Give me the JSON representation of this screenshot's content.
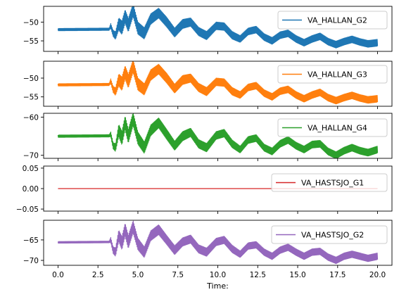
{
  "chart_data": {
    "type": "line",
    "layout": "stacked-subplots",
    "shared_x": true,
    "xlabel": "Time:",
    "xlim": [
      -0.9,
      20.9
    ],
    "xticks": [
      0.0,
      2.5,
      5.0,
      7.5,
      10.0,
      12.5,
      15.0,
      17.5,
      20.0
    ],
    "xtick_labels": [
      "0.0",
      "2.5",
      "5.0",
      "7.5",
      "10.0",
      "12.5",
      "15.0",
      "17.5",
      "20.0"
    ],
    "grid": false,
    "subplots": [
      {
        "series": [
          {
            "name": "VA_HALLAN_G2",
            "color": "#1f77b4",
            "x": [
              0.0,
              3.2,
              3.3,
              3.45,
              3.6,
              3.8,
              4.0,
              4.2,
              4.4,
              4.7,
              5.0,
              5.4,
              5.8,
              6.3,
              6.8,
              7.3,
              7.8,
              8.3,
              8.8,
              9.3,
              9.9,
              10.4,
              10.9,
              11.4,
              11.9,
              12.4,
              12.9,
              13.4,
              13.9,
              14.4,
              14.9,
              15.4,
              15.9,
              16.4,
              16.9,
              17.4,
              17.9,
              18.4,
              18.9,
              19.4,
              20.0
            ],
            "y": [
              -52.0,
              -51.9,
              -51.0,
              -53.0,
              -53.6,
              -50.5,
              -51.5,
              -48.5,
              -50.8,
              -46.8,
              -51.6,
              -53.0,
              -49.2,
              -47.6,
              -50.0,
              -52.8,
              -50.5,
              -50.0,
              -52.5,
              -53.6,
              -51.0,
              -51.2,
              -53.5,
              -54.5,
              -52.5,
              -52.0,
              -54.0,
              -55.0,
              -53.5,
              -53.0,
              -54.5,
              -55.5,
              -54.5,
              -53.8,
              -55.2,
              -56.0,
              -55.2,
              -54.6,
              -55.3,
              -55.8,
              -55.5
            ],
            "osc": [
              0.3,
              0.3,
              0.6,
              0.8,
              1.0,
              1.6,
              1.8,
              1.8,
              1.8,
              1.7,
              1.6,
              1.5,
              1.4,
              1.3,
              1.3,
              1.2,
              1.2,
              1.1,
              1.1,
              1.1,
              1.0,
              1.0,
              1.0,
              0.9,
              0.9,
              0.9,
              0.9,
              0.9,
              0.9,
              0.9,
              0.9,
              0.9,
              0.9,
              0.9,
              0.9,
              0.9,
              0.9,
              0.9,
              0.9,
              0.9,
              0.9
            ]
          }
        ],
        "ylim": [
          -57.8,
          -45.8
        ],
        "yticks": [
          -50,
          -55
        ],
        "ytick_labels": [
          "−50",
          "−55"
        ],
        "legend": "upper right"
      },
      {
        "series": [
          {
            "name": "VA_HALLAN_G3",
            "color": "#ff7f0e",
            "x": [
              0.0,
              3.2,
              3.3,
              3.45,
              3.6,
              3.8,
              4.0,
              4.2,
              4.4,
              4.7,
              5.0,
              5.4,
              5.8,
              6.3,
              6.8,
              7.3,
              7.8,
              8.3,
              8.8,
              9.3,
              9.9,
              10.4,
              10.9,
              11.4,
              11.9,
              12.4,
              12.9,
              13.4,
              13.9,
              14.4,
              14.9,
              15.4,
              15.9,
              16.4,
              16.9,
              17.4,
              17.9,
              18.4,
              18.9,
              19.4,
              20.0
            ],
            "y": [
              -51.8,
              -51.7,
              -50.8,
              -53.0,
              -53.6,
              -50.5,
              -51.5,
              -48.5,
              -50.8,
              -46.8,
              -51.6,
              -53.0,
              -49.2,
              -47.6,
              -50.0,
              -52.8,
              -50.5,
              -50.0,
              -52.5,
              -53.6,
              -51.0,
              -51.2,
              -53.5,
              -54.5,
              -52.5,
              -52.0,
              -54.0,
              -55.0,
              -53.5,
              -53.0,
              -54.5,
              -55.5,
              -54.5,
              -53.8,
              -55.2,
              -56.0,
              -55.2,
              -54.6,
              -55.3,
              -55.8,
              -55.5
            ],
            "osc": [
              0.3,
              0.3,
              0.6,
              0.8,
              1.0,
              1.6,
              1.8,
              1.8,
              1.8,
              1.7,
              1.6,
              1.5,
              1.4,
              1.3,
              1.3,
              1.2,
              1.2,
              1.1,
              1.1,
              1.1,
              1.0,
              1.0,
              1.0,
              0.9,
              0.9,
              0.9,
              0.9,
              0.9,
              0.9,
              0.9,
              0.9,
              0.9,
              0.9,
              0.9,
              0.9,
              0.9,
              0.9,
              0.9,
              0.9,
              0.9,
              0.9
            ]
          }
        ],
        "ylim": [
          -57.5,
          -45.5
        ],
        "yticks": [
          -50,
          -55
        ],
        "ytick_labels": [
          "−50",
          "−55"
        ],
        "legend": "upper right"
      },
      {
        "series": [
          {
            "name": "VA_HALLAN_G4",
            "color": "#2ca02c",
            "x": [
              0.0,
              3.2,
              3.3,
              3.45,
              3.6,
              3.8,
              4.0,
              4.2,
              4.4,
              4.7,
              5.0,
              5.4,
              5.8,
              6.3,
              6.8,
              7.3,
              7.8,
              8.3,
              8.8,
              9.3,
              9.9,
              10.4,
              10.9,
              11.4,
              11.9,
              12.4,
              12.9,
              13.4,
              13.9,
              14.4,
              14.9,
              15.4,
              15.9,
              16.4,
              16.9,
              17.4,
              17.9,
              18.4,
              18.9,
              19.4,
              20.0
            ],
            "y": [
              -65.0,
              -64.9,
              -64.5,
              -67.5,
              -68.0,
              -63.5,
              -65.5,
              -61.5,
              -65.0,
              -60.5,
              -65.5,
              -68.0,
              -63.5,
              -61.5,
              -64.5,
              -67.5,
              -65.0,
              -64.0,
              -67.0,
              -68.0,
              -64.8,
              -64.2,
              -67.0,
              -68.5,
              -66.0,
              -65.5,
              -68.0,
              -69.0,
              -67.0,
              -66.0,
              -67.5,
              -68.5,
              -67.2,
              -67.0,
              -69.0,
              -70.0,
              -68.8,
              -68.0,
              -68.8,
              -69.3,
              -68.5
            ],
            "osc": [
              0.3,
              0.3,
              0.6,
              0.8,
              1.0,
              1.6,
              1.8,
              1.8,
              1.8,
              1.7,
              1.6,
              1.5,
              1.4,
              1.3,
              1.3,
              1.2,
              1.2,
              1.1,
              1.1,
              1.1,
              1.0,
              1.0,
              1.0,
              0.9,
              0.9,
              0.9,
              0.9,
              0.9,
              0.9,
              0.9,
              0.9,
              0.9,
              0.9,
              0.9,
              0.9,
              0.9,
              0.9,
              0.9,
              0.9,
              0.9,
              0.9
            ]
          }
        ],
        "ylim": [
          -70.8,
          -59.0
        ],
        "yticks": [
          -60,
          -70
        ],
        "ytick_labels": [
          "−60",
          "−70"
        ],
        "legend": "upper right"
      },
      {
        "series": [
          {
            "name": "VA_HASTSJO_G1",
            "color": "#d62728",
            "x": [
              0.0,
              20.0
            ],
            "y": [
              0.0,
              0.0
            ],
            "osc": [
              0,
              0
            ]
          }
        ],
        "ylim": [
          -0.055,
          0.055
        ],
        "yticks": [
          0.05,
          0.0,
          -0.05
        ],
        "ytick_labels": [
          "0.05",
          "0.00",
          "−0.05"
        ],
        "legend": "upper right"
      },
      {
        "series": [
          {
            "name": "VA_HASTSJO_G2",
            "color": "#9467bd",
            "x": [
              0.0,
              3.2,
              3.3,
              3.45,
              3.6,
              3.8,
              4.0,
              4.2,
              4.4,
              4.7,
              5.0,
              5.4,
              5.8,
              6.3,
              6.8,
              7.3,
              7.8,
              8.3,
              8.8,
              9.3,
              9.9,
              10.4,
              10.9,
              11.4,
              11.9,
              12.4,
              12.9,
              13.4,
              13.9,
              14.4,
              14.9,
              15.4,
              15.9,
              16.4,
              16.9,
              17.4,
              17.9,
              18.4,
              18.9,
              19.4,
              20.0
            ],
            "y": [
              -65.6,
              -65.5,
              -65.0,
              -67.5,
              -68.0,
              -64.0,
              -65.8,
              -62.5,
              -65.5,
              -61.8,
              -66.0,
              -68.0,
              -64.0,
              -62.5,
              -65.0,
              -67.5,
              -65.5,
              -64.8,
              -67.2,
              -68.0,
              -65.5,
              -65.0,
              -67.2,
              -68.5,
              -66.5,
              -66.2,
              -68.0,
              -69.0,
              -67.5,
              -66.8,
              -68.0,
              -69.0,
              -68.0,
              -67.8,
              -69.2,
              -70.0,
              -69.0,
              -68.5,
              -69.0,
              -69.5,
              -69.0
            ],
            "osc": [
              0.2,
              0.2,
              0.6,
              0.8,
              1.0,
              1.4,
              1.6,
              1.6,
              1.6,
              1.5,
              1.4,
              1.3,
              1.2,
              1.2,
              1.1,
              1.1,
              1.0,
              1.0,
              1.0,
              1.0,
              0.9,
              0.9,
              0.9,
              0.8,
              0.8,
              0.8,
              0.8,
              0.8,
              0.8,
              0.8,
              0.8,
              0.8,
              0.8,
              0.8,
              0.8,
              0.8,
              0.8,
              0.8,
              0.8,
              0.8,
              0.8
            ]
          }
        ],
        "ylim": [
          -71.2,
          -60.2
        ],
        "yticks": [
          -65,
          -70
        ],
        "ytick_labels": [
          "−65",
          "−70"
        ],
        "legend": "upper right"
      }
    ]
  }
}
